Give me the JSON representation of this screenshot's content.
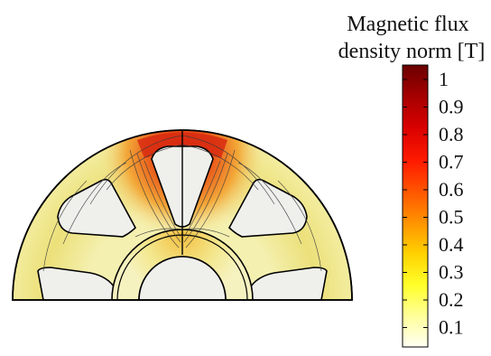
{
  "legend": {
    "title_line1": "Magnetic flux",
    "title_line2": "density norm [T]",
    "ticks": [
      "1",
      "0.9",
      "0.8",
      "0.7",
      "0.6",
      "0.5",
      "0.4",
      "0.3",
      "0.2",
      "0.1"
    ],
    "stops": [
      "#fffff4",
      "#ffff9a",
      "#ffff2a",
      "#ffd200",
      "#ff9400",
      "#ff5600",
      "#ff1a00",
      "#d80000",
      "#a00000",
      "#6a0000"
    ]
  },
  "colors": {
    "stator_low": "#f2eeaa",
    "stator_mid": "#ead46a",
    "hot_orange": "#f08020",
    "hot_red": "#dc2a10",
    "air": "#f0f0ee",
    "outline": "#000000",
    "contour": "#333333"
  }
}
